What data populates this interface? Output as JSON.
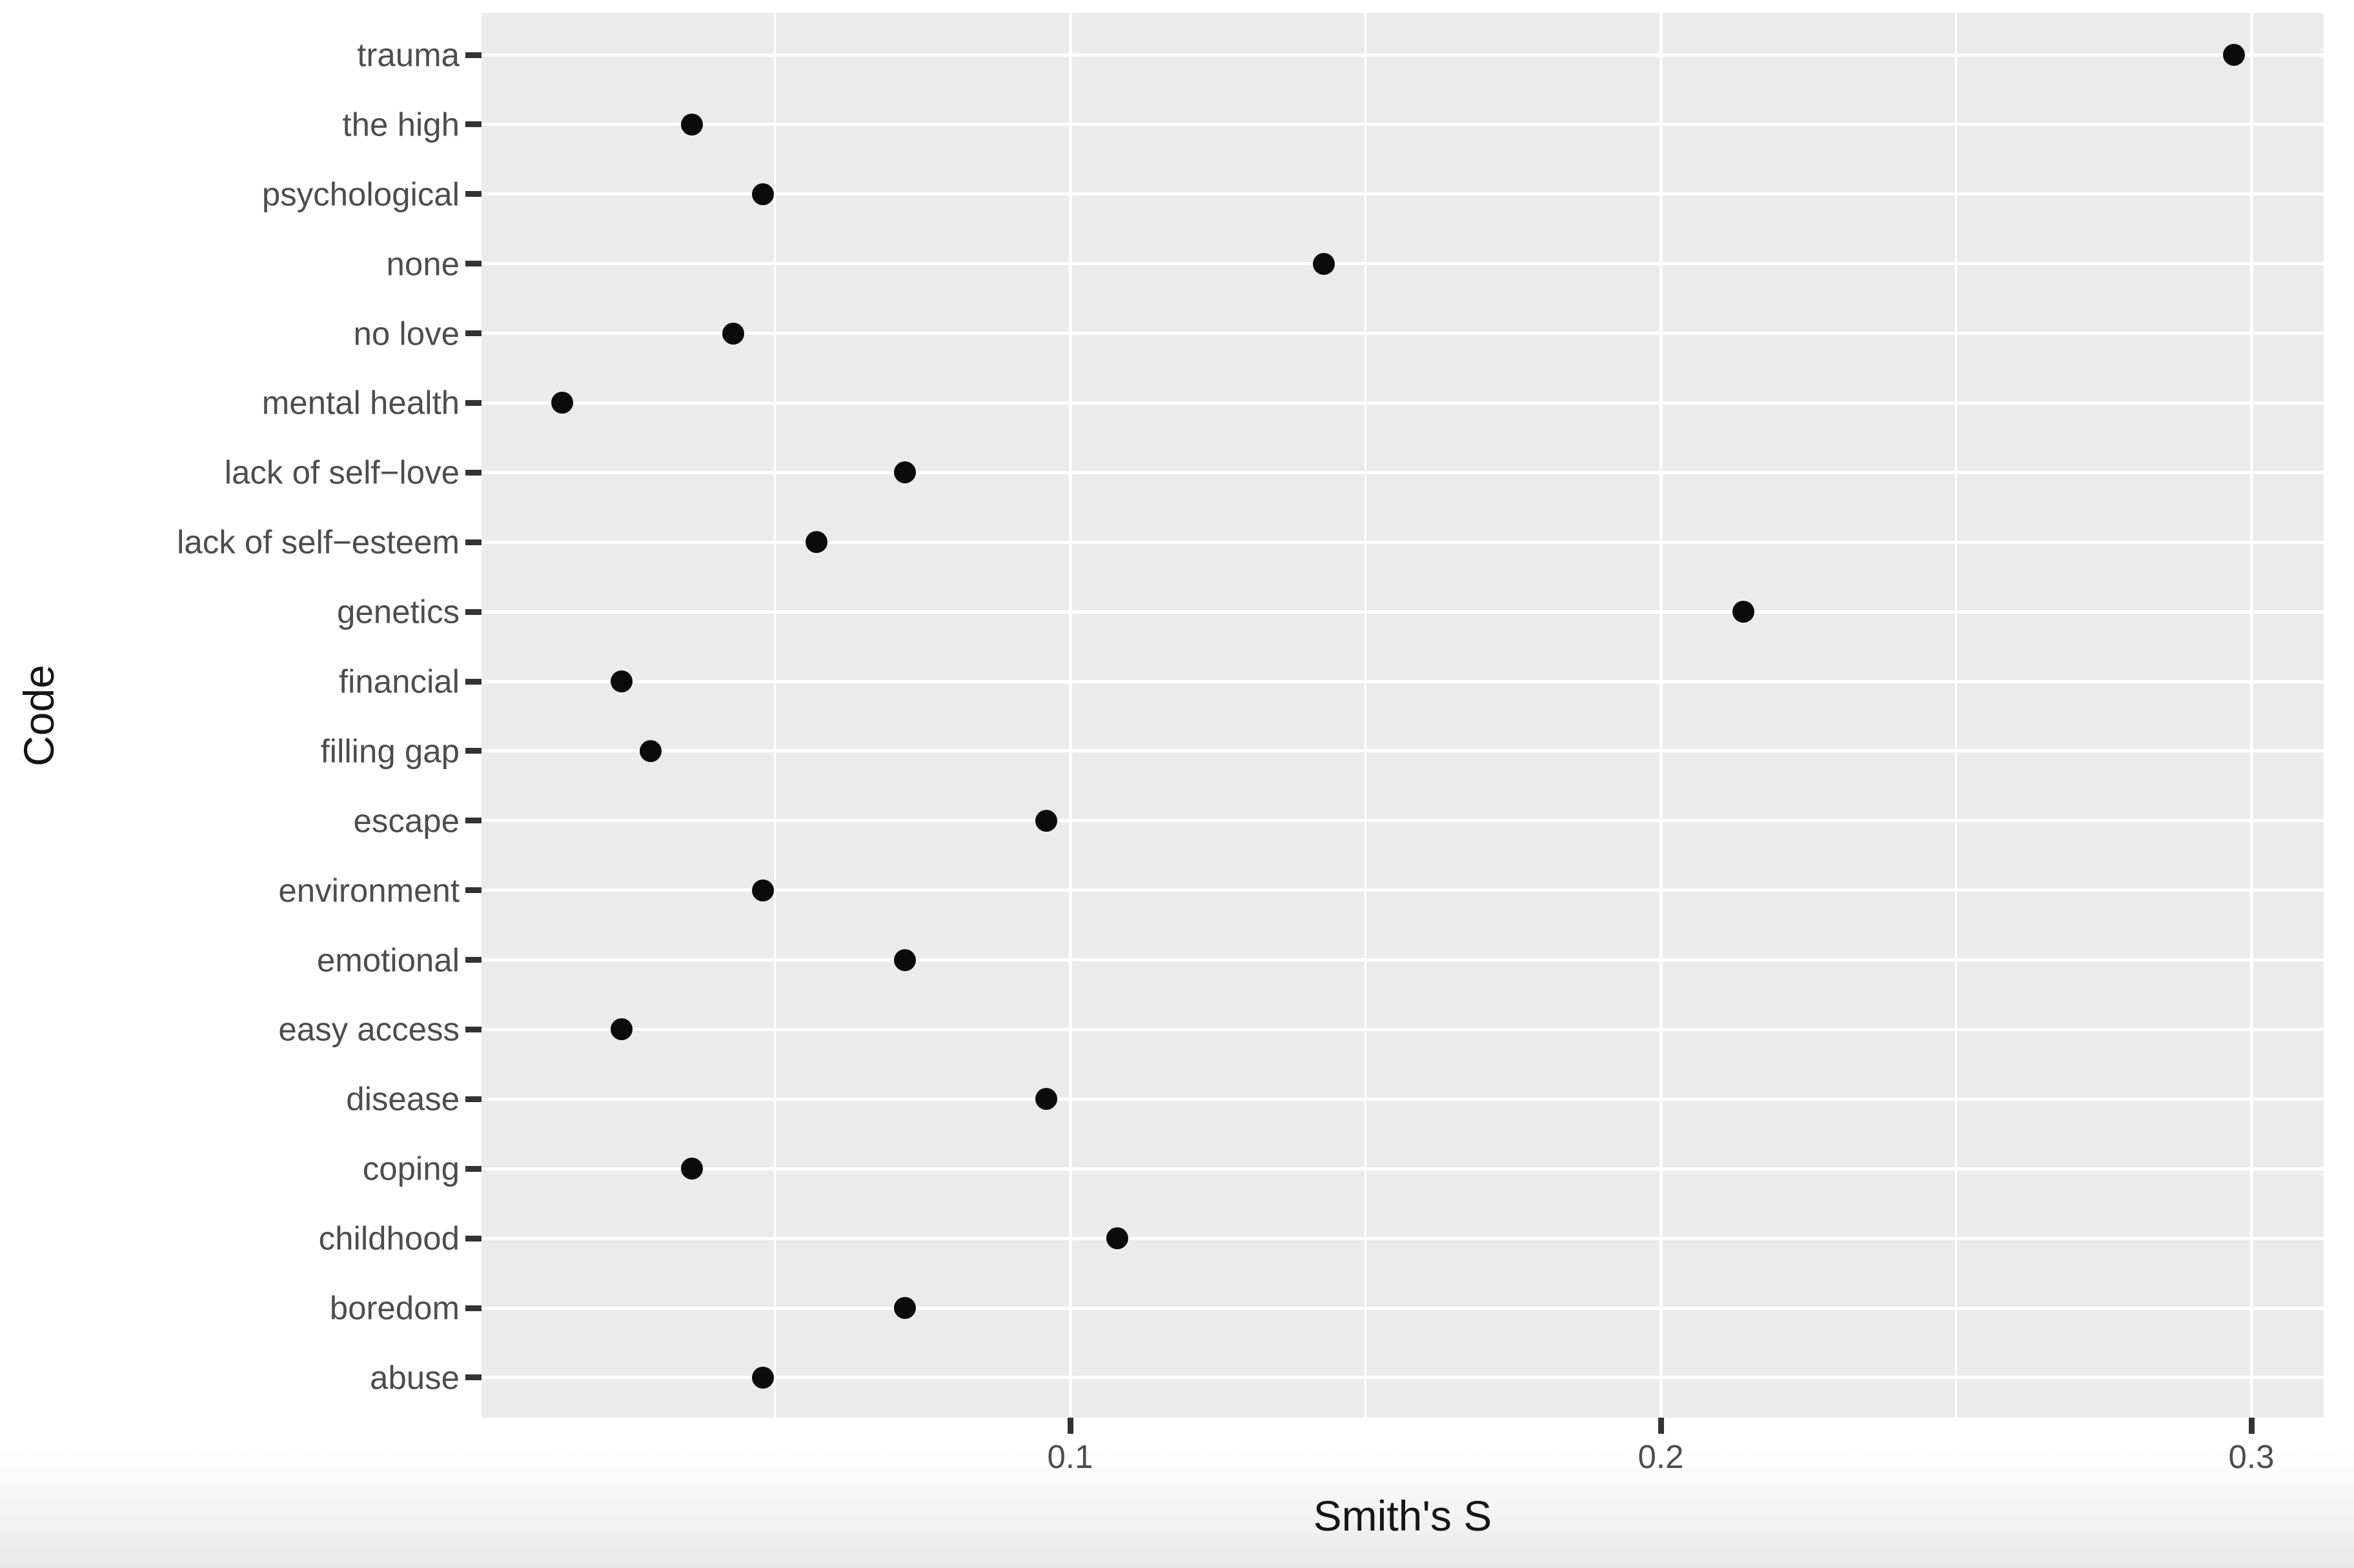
{
  "chart_data": {
    "type": "scatter",
    "subtype": "horizontal-dot-plot",
    "title": "",
    "xlabel": "Smith's S",
    "ylabel": "Code",
    "legend": "none",
    "grid": "on",
    "panel_bg": "#EBEBEB",
    "grid_color": "#FFFFFF",
    "point_color": "#0b0b0b",
    "tick_color": "#333333",
    "axis_text_color": "#4d4d4d",
    "xlim": [
      0,
      0.312
    ],
    "x_ticks": [
      0.1,
      0.2,
      0.3
    ],
    "x_tick_labels": [
      "0.1",
      "0.2",
      "0.3"
    ],
    "x_minor_gridlines": [
      0.05,
      0.15,
      0.25
    ],
    "categories_top_to_bottom": [
      "trauma",
      "the high",
      "psychological",
      "none",
      "no love",
      "mental health",
      "lack of self−love",
      "lack of self−esteem",
      "genetics",
      "financial",
      "filling gap",
      "escape",
      "environment",
      "emotional",
      "easy access",
      "disease",
      "coping",
      "childhood",
      "boredom",
      "abuse"
    ],
    "values": [
      0.297,
      0.036,
      0.048,
      0.143,
      0.043,
      0.014,
      0.072,
      0.057,
      0.214,
      0.024,
      0.029,
      0.096,
      0.048,
      0.072,
      0.024,
      0.096,
      0.036,
      0.108,
      0.072,
      0.048
    ]
  }
}
